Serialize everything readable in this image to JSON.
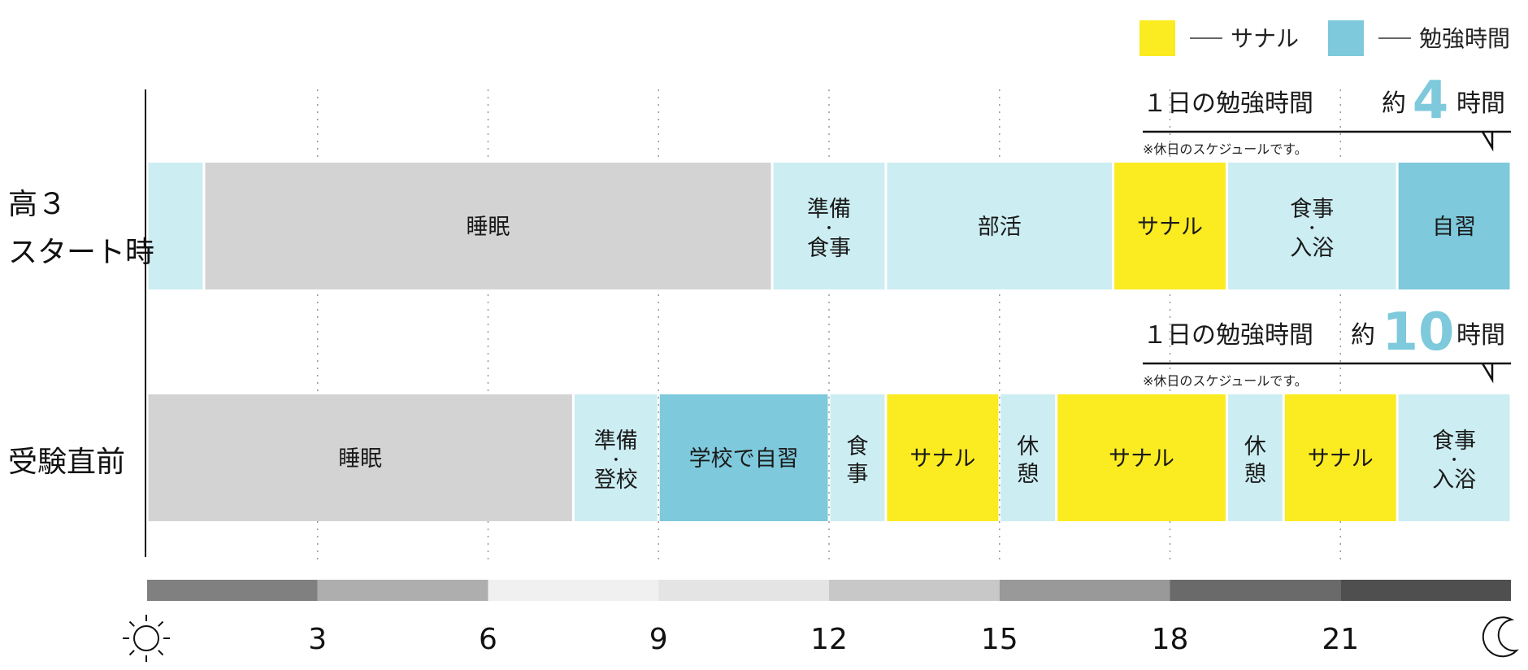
{
  "legend": [
    {
      "label": "サナル",
      "color": "#FBEB21"
    },
    {
      "label": "勉強時間",
      "color": "#7EC9DC"
    }
  ],
  "colors": {
    "sleep": "#D3D3D3",
    "light": "#CCEDF2",
    "sanaru": "#FBEB21",
    "study": "#7EC9DC",
    "highlight_number": "#7EC9DC"
  },
  "rows": [
    {
      "label_lines": [
        "高３",
        "スタート時"
      ],
      "study_summary": {
        "prefix": "１日の勉強時間",
        "about": "約",
        "number": "4",
        "unit": "時間"
      },
      "note": "※休日のスケジュールです。"
    },
    {
      "label_lines": [
        "受験直前"
      ],
      "study_summary": {
        "prefix": "１日の勉強時間",
        "about": "約",
        "number": "10",
        "unit": "時間"
      },
      "note": "※休日のスケジュールです。"
    }
  ],
  "chart_data": {
    "type": "bar",
    "subtype": "horizontal-timeline",
    "xlim": [
      0,
      24
    ],
    "xticks": [
      3,
      6,
      9,
      12,
      15,
      18,
      21
    ],
    "x_start_icon": "sun-icon",
    "x_end_icon": "moon-icon",
    "series": [
      {
        "row": "高３スタート時",
        "segments": [
          {
            "start": 0,
            "end": 1,
            "label": "",
            "kind": "light"
          },
          {
            "start": 1,
            "end": 11,
            "label": "睡眠",
            "kind": "sleep"
          },
          {
            "start": 11,
            "end": 13,
            "label": "準備・食事",
            "kind": "light"
          },
          {
            "start": 13,
            "end": 17,
            "label": "部活",
            "kind": "light"
          },
          {
            "start": 17,
            "end": 19,
            "label": "サナル",
            "kind": "sanaru"
          },
          {
            "start": 19,
            "end": 22,
            "label": "食事・入浴",
            "kind": "light"
          },
          {
            "start": 22,
            "end": 24,
            "label": "自習",
            "kind": "study"
          }
        ]
      },
      {
        "row": "受験直前",
        "segments": [
          {
            "start": 0,
            "end": 7.5,
            "label": "睡眠",
            "kind": "sleep"
          },
          {
            "start": 7.5,
            "end": 9,
            "label": "準備・登校",
            "kind": "light"
          },
          {
            "start": 9,
            "end": 12,
            "label": "学校で自習",
            "kind": "study"
          },
          {
            "start": 12,
            "end": 13,
            "label": "食事",
            "kind": "light"
          },
          {
            "start": 13,
            "end": 15,
            "label": "サナル",
            "kind": "sanaru"
          },
          {
            "start": 15,
            "end": 16,
            "label": "休憩",
            "kind": "light"
          },
          {
            "start": 16,
            "end": 19,
            "label": "サナル",
            "kind": "sanaru"
          },
          {
            "start": 19,
            "end": 20,
            "label": "休憩",
            "kind": "light"
          },
          {
            "start": 20,
            "end": 22,
            "label": "サナル",
            "kind": "sanaru"
          },
          {
            "start": 22,
            "end": 24,
            "label": "食事・入浴",
            "kind": "light"
          }
        ]
      }
    ],
    "time_gradient": [
      "#808080",
      "#AEAEAE",
      "#F0F0F0",
      "#E4E4E4",
      "#C8C8C8",
      "#999999",
      "#6A6A6A",
      "#4F4F4F"
    ]
  }
}
